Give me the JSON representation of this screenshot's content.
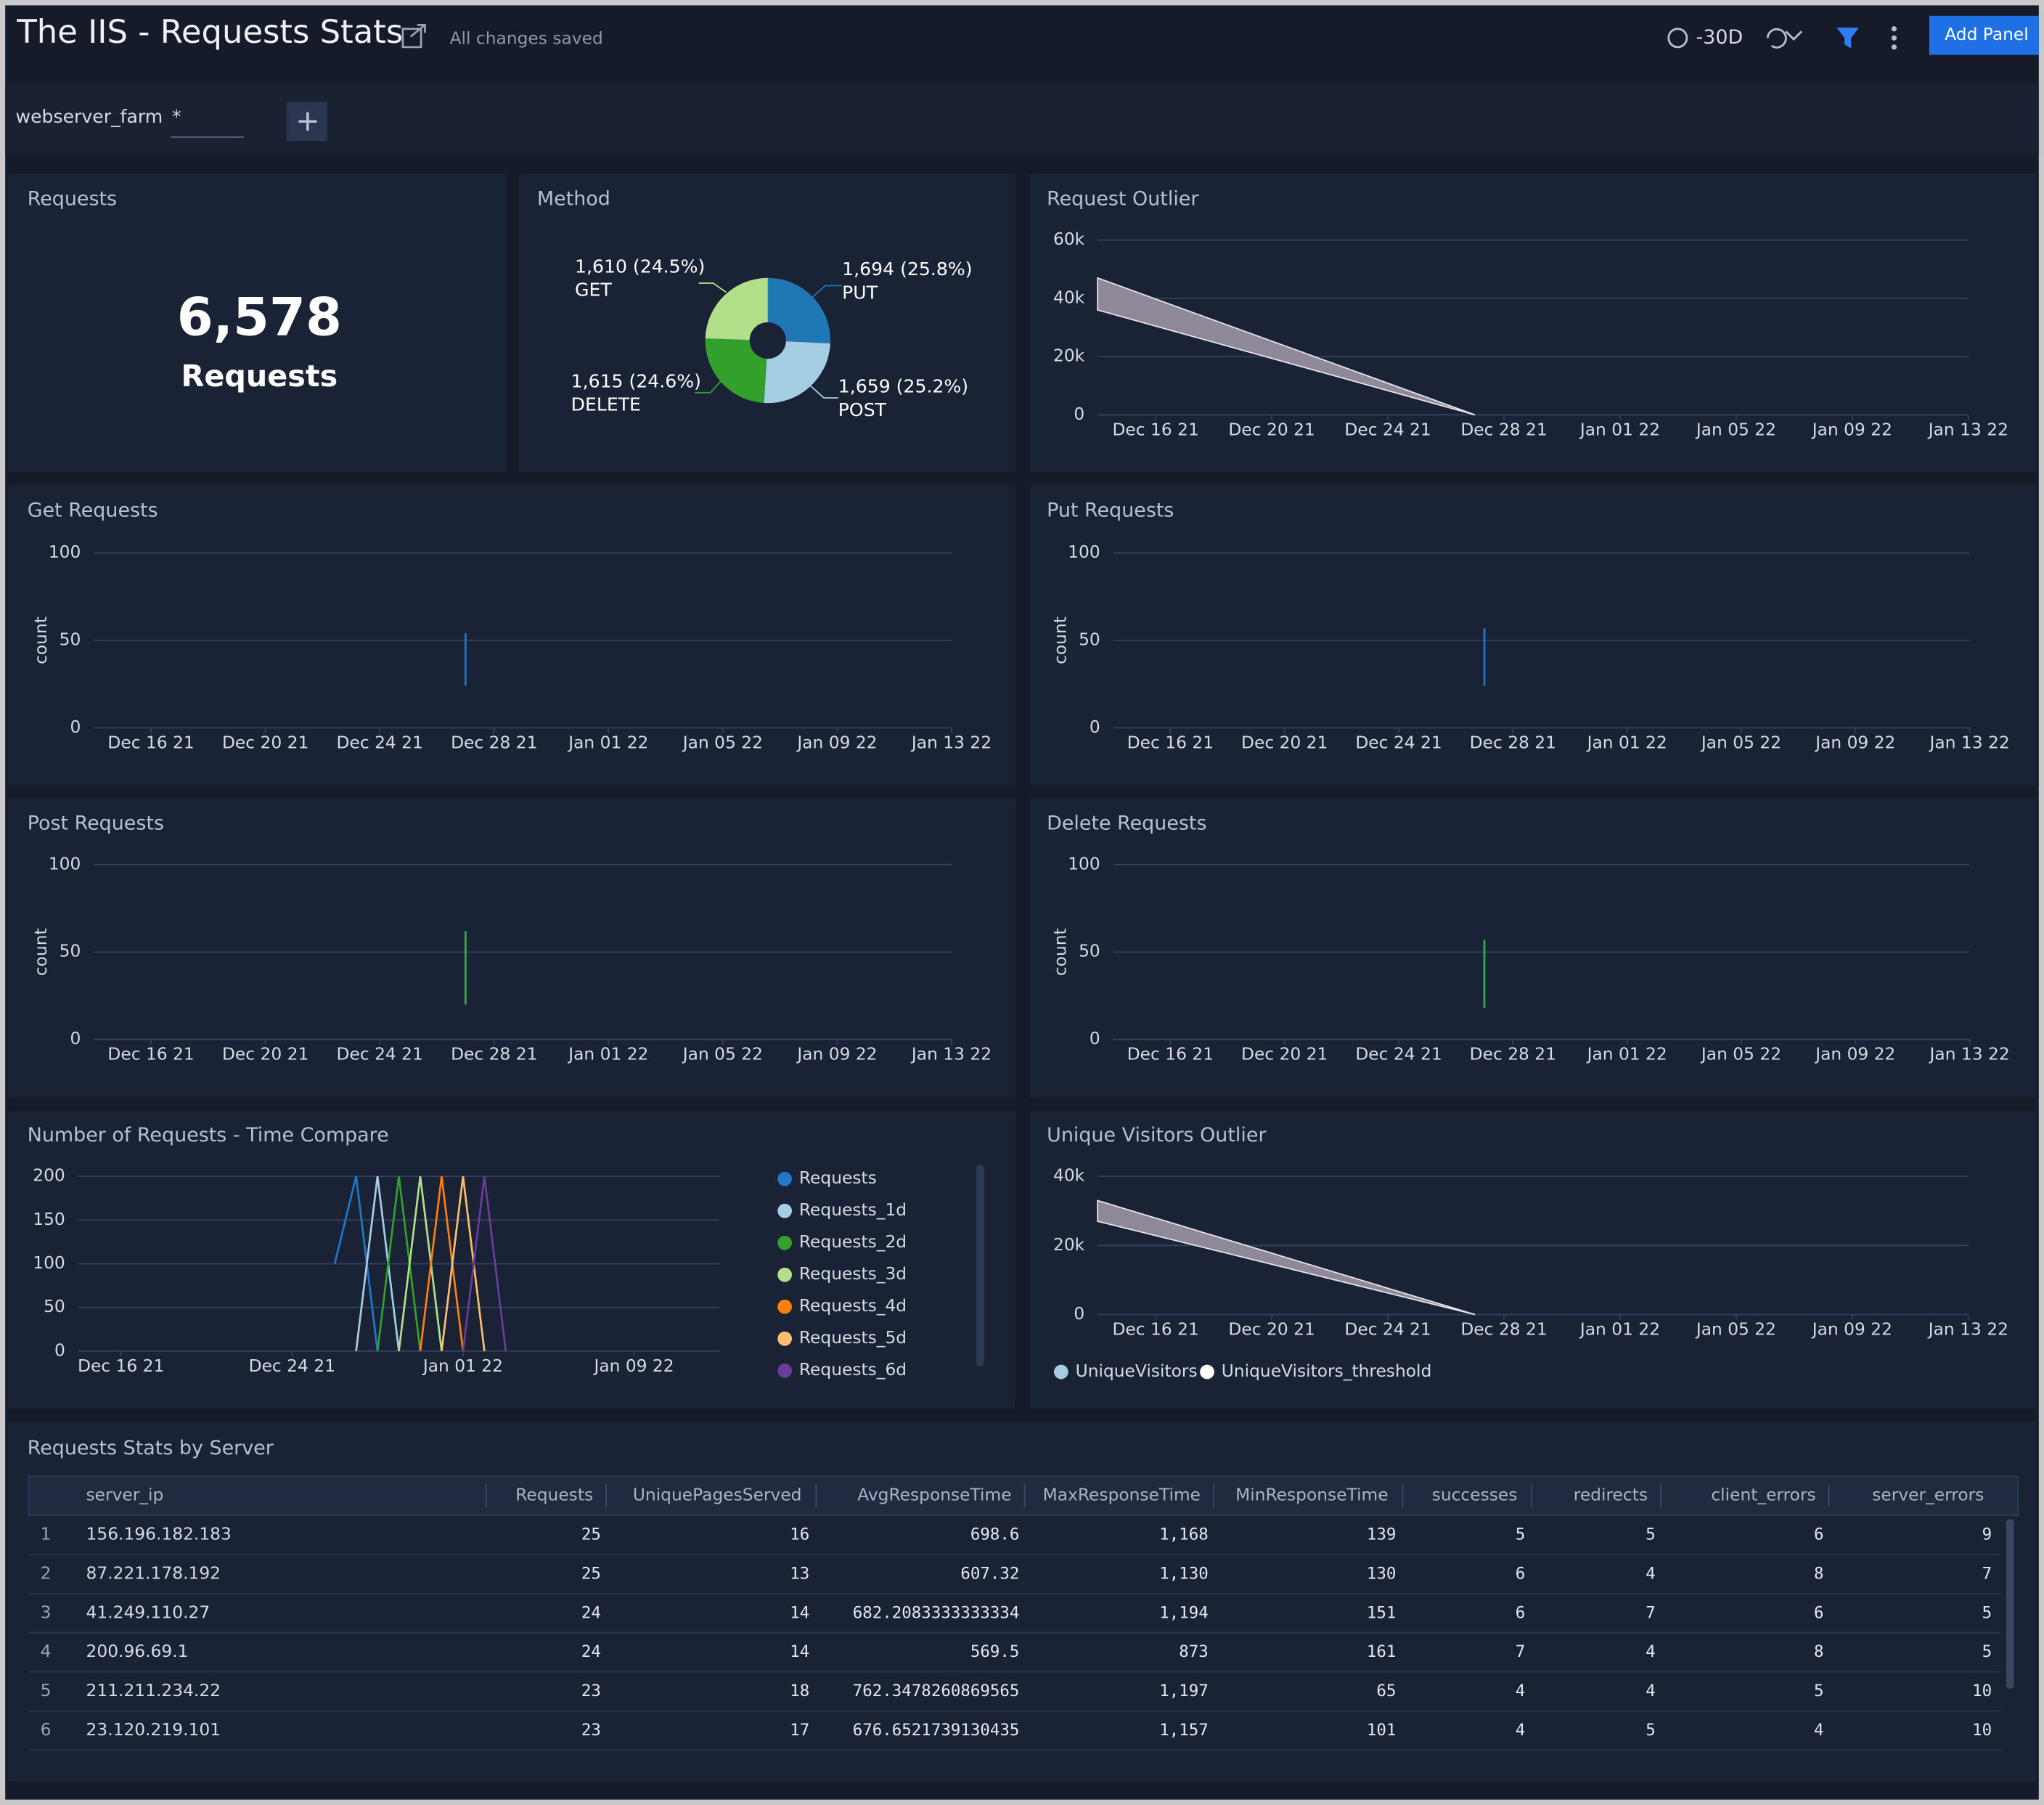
{
  "header": {
    "title": "The IIS - Requests Stats",
    "status": "All changes saved",
    "time_range": "-30D",
    "button": "Add Panel"
  },
  "filter": {
    "name": "webserver_farm",
    "value": "*"
  },
  "panels": {
    "requests": {
      "title": "Requests",
      "value": "6,578",
      "unit": "Requests"
    },
    "method": {
      "title": "Method",
      "type": "pie",
      "categories": [
        "PUT",
        "POST",
        "DELETE",
        "GET"
      ],
      "values": [
        1694,
        1659,
        1615,
        1610
      ],
      "value_labels": [
        "1,694 (25.8%)",
        "1,659 (25.2%)",
        "1,615 (24.6%)",
        "1,610 (24.5%)"
      ],
      "colors": [
        "#1f78b4",
        "#a6cee3",
        "#33a02c",
        "#b2df8a"
      ]
    },
    "request_outlier": {
      "title": "Request Outlier",
      "type": "band",
      "x": [
        "2021-12-14",
        "2021-12-27"
      ],
      "upper": [
        47000,
        0
      ],
      "lower": [
        36000,
        0
      ],
      "color": "#8f8898",
      "xlim": [
        "2021-12-14",
        "2022-01-13"
      ],
      "xticks": [
        {
          "value": "2021-12-16",
          "label": "Dec 16 21"
        },
        {
          "value": "2021-12-20",
          "label": "Dec 20 21"
        },
        {
          "value": "2021-12-24",
          "label": "Dec 24 21"
        },
        {
          "value": "2021-12-28",
          "label": "Dec 28 21"
        },
        {
          "value": "2022-01-01",
          "label": "Jan 01 22"
        },
        {
          "value": "2022-01-05",
          "label": "Jan 05 22"
        },
        {
          "value": "2022-01-09",
          "label": "Jan 09 22"
        },
        {
          "value": "2022-01-13",
          "label": "Jan 13 22"
        }
      ],
      "ylim": [
        0,
        60000
      ],
      "yticks": [
        0,
        {
          "value": 20000,
          "label": "20k"
        },
        {
          "value": 40000,
          "label": "40k"
        },
        {
          "value": 60000,
          "label": "60k"
        }
      ]
    },
    "get_requests": {
      "title": "Get Requests",
      "type": "line",
      "y_label": "count",
      "series": [
        {
          "color": "#1f78c8",
          "x": [
            "2021-12-27",
            "2021-12-27"
          ],
          "values": [
            54,
            24
          ]
        }
      ],
      "xlim": [
        "2021-12-14",
        "2022-01-13"
      ],
      "xticks": [
        {
          "value": "2021-12-16",
          "label": "Dec 16 21"
        },
        {
          "value": "2021-12-20",
          "label": "Dec 20 21"
        },
        {
          "value": "2021-12-24",
          "label": "Dec 24 21"
        },
        {
          "value": "2021-12-28",
          "label": "Dec 28 21"
        },
        {
          "value": "2022-01-01",
          "label": "Jan 01 22"
        },
        {
          "value": "2022-01-05",
          "label": "Jan 05 22"
        },
        {
          "value": "2022-01-09",
          "label": "Jan 09 22"
        },
        {
          "value": "2022-01-13",
          "label": "Jan 13 22"
        }
      ],
      "ylim": [
        0,
        100
      ],
      "yticks": [
        0,
        50,
        100
      ]
    },
    "put_requests": {
      "title": "Put Requests",
      "type": "line",
      "y_label": "count",
      "series": [
        {
          "color": "#1f78c8",
          "x": [
            "2021-12-27",
            "2021-12-27"
          ],
          "values": [
            57,
            24
          ]
        }
      ],
      "xlim": [
        "2021-12-14",
        "2022-01-13"
      ],
      "xticks": [
        {
          "value": "2021-12-16",
          "label": "Dec 16 21"
        },
        {
          "value": "2021-12-20",
          "label": "Dec 20 21"
        },
        {
          "value": "2021-12-24",
          "label": "Dec 24 21"
        },
        {
          "value": "2021-12-28",
          "label": "Dec 28 21"
        },
        {
          "value": "2022-01-01",
          "label": "Jan 01 22"
        },
        {
          "value": "2022-01-05",
          "label": "Jan 05 22"
        },
        {
          "value": "2022-01-09",
          "label": "Jan 09 22"
        },
        {
          "value": "2022-01-13",
          "label": "Jan 13 22"
        }
      ],
      "ylim": [
        0,
        100
      ],
      "yticks": [
        0,
        50,
        100
      ]
    },
    "post_requests": {
      "title": "Post Requests",
      "type": "line",
      "y_label": "count",
      "series": [
        {
          "color": "#33b04c",
          "x": [
            "2021-12-27",
            "2021-12-27"
          ],
          "values": [
            62,
            20
          ]
        }
      ],
      "xlim": [
        "2021-12-14",
        "2022-01-13"
      ],
      "xticks": [
        {
          "value": "2021-12-16",
          "label": "Dec 16 21"
        },
        {
          "value": "2021-12-20",
          "label": "Dec 20 21"
        },
        {
          "value": "2021-12-24",
          "label": "Dec 24 21"
        },
        {
          "value": "2021-12-28",
          "label": "Dec 28 21"
        },
        {
          "value": "2022-01-01",
          "label": "Jan 01 22"
        },
        {
          "value": "2022-01-05",
          "label": "Jan 05 22"
        },
        {
          "value": "2022-01-09",
          "label": "Jan 09 22"
        },
        {
          "value": "2022-01-13",
          "label": "Jan 13 22"
        }
      ],
      "ylim": [
        0,
        100
      ],
      "yticks": [
        0,
        50,
        100
      ]
    },
    "delete_requests": {
      "title": "Delete Requests",
      "type": "line",
      "y_label": "count",
      "series": [
        {
          "color": "#33b04c",
          "x": [
            "2021-12-27",
            "2021-12-27"
          ],
          "values": [
            57,
            18
          ]
        }
      ],
      "xlim": [
        "2021-12-14",
        "2022-01-13"
      ],
      "xticks": [
        {
          "value": "2021-12-16",
          "label": "Dec 16 21"
        },
        {
          "value": "2021-12-20",
          "label": "Dec 20 21"
        },
        {
          "value": "2021-12-24",
          "label": "Dec 24 21"
        },
        {
          "value": "2021-12-28",
          "label": "Dec 28 21"
        },
        {
          "value": "2022-01-01",
          "label": "Jan 01 22"
        },
        {
          "value": "2022-01-05",
          "label": "Jan 05 22"
        },
        {
          "value": "2022-01-09",
          "label": "Jan 09 22"
        },
        {
          "value": "2022-01-13",
          "label": "Jan 13 22"
        }
      ],
      "ylim": [
        0,
        100
      ],
      "yticks": [
        0,
        50,
        100
      ]
    },
    "time_compare": {
      "title": "Number of Requests - Time Compare",
      "type": "line",
      "series": [
        {
          "name": "Requests",
          "color": "#1f78c8",
          "x": [
            "2021-12-26",
            "2021-12-27",
            "2021-12-28"
          ],
          "values": [
            100,
            200,
            0
          ]
        },
        {
          "name": "Requests_1d",
          "color": "#a6cee3",
          "x": [
            "2021-12-27",
            "2021-12-28",
            "2021-12-29"
          ],
          "values": [
            0,
            200,
            0
          ]
        },
        {
          "name": "Requests_2d",
          "color": "#33a02c",
          "x": [
            "2021-12-28",
            "2021-12-29",
            "2021-12-30"
          ],
          "values": [
            0,
            200,
            0
          ]
        },
        {
          "name": "Requests_3d",
          "color": "#b2df8a",
          "x": [
            "2021-12-29",
            "2021-12-30",
            "2021-12-31"
          ],
          "values": [
            0,
            200,
            0
          ]
        },
        {
          "name": "Requests_4d",
          "color": "#ff7f0e",
          "x": [
            "2021-12-30",
            "2021-12-31",
            "2022-01-01"
          ],
          "values": [
            0,
            200,
            0
          ]
        },
        {
          "name": "Requests_5d",
          "color": "#fdbf6f",
          "x": [
            "2021-12-31",
            "2022-01-01",
            "2022-01-02"
          ],
          "values": [
            0,
            200,
            0
          ]
        },
        {
          "name": "Requests_6d",
          "color": "#6a3d9a",
          "x": [
            "2022-01-01",
            "2022-01-02",
            "2022-01-03"
          ],
          "values": [
            0,
            200,
            0
          ]
        }
      ],
      "xlim": [
        "2021-12-14",
        "2022-01-13"
      ],
      "xticks": [
        {
          "value": "2021-12-16",
          "label": "Dec 16 21"
        },
        {
          "value": "2021-12-24",
          "label": "Dec 24 21"
        },
        {
          "value": "2022-01-01",
          "label": "Jan 01 22"
        },
        {
          "value": "2022-01-09",
          "label": "Jan 09 22"
        }
      ],
      "ylim": [
        0,
        200
      ],
      "yticks": [
        0,
        50,
        100,
        150,
        200
      ]
    },
    "unique_visitors_outlier": {
      "title": "Unique Visitors Outlier",
      "type": "band",
      "x": [
        "2021-12-14",
        "2021-12-27"
      ],
      "upper": [
        33000,
        0
      ],
      "lower": [
        27000,
        0
      ],
      "color": "#8f8898",
      "legend": [
        {
          "name": "UniqueVisitors",
          "color": "#a6cee3"
        },
        {
          "name": "UniqueVisitors_threshold",
          "color": "#ffffff"
        }
      ],
      "xlim": [
        "2021-12-14",
        "2022-01-13"
      ],
      "xticks": [
        {
          "value": "2021-12-16",
          "label": "Dec 16 21"
        },
        {
          "value": "2021-12-20",
          "label": "Dec 20 21"
        },
        {
          "value": "2021-12-24",
          "label": "Dec 24 21"
        },
        {
          "value": "2021-12-28",
          "label": "Dec 28 21"
        },
        {
          "value": "2022-01-01",
          "label": "Jan 01 22"
        },
        {
          "value": "2022-01-05",
          "label": "Jan 05 22"
        },
        {
          "value": "2022-01-09",
          "label": "Jan 09 22"
        },
        {
          "value": "2022-01-13",
          "label": "Jan 13 22"
        }
      ],
      "ylim": [
        0,
        40000
      ],
      "yticks": [
        0,
        {
          "value": 20000,
          "label": "20k"
        },
        {
          "value": 40000,
          "label": "40k"
        }
      ]
    }
  },
  "table": {
    "title": "Requests Stats by Server",
    "columns": [
      "server_ip",
      "Requests",
      "UniquePagesServed",
      "AvgResponseTime",
      "MaxResponseTime",
      "MinResponseTime",
      "successes",
      "redirects",
      "client_errors",
      "server_errors"
    ],
    "rows": [
      [
        "1",
        "156.196.182.183",
        "25",
        "16",
        "698.6",
        "1,168",
        "139",
        "5",
        "5",
        "6",
        "9"
      ],
      [
        "2",
        "87.221.178.192",
        "25",
        "13",
        "607.32",
        "1,130",
        "130",
        "6",
        "4",
        "8",
        "7"
      ],
      [
        "3",
        "41.249.110.27",
        "24",
        "14",
        "682.2083333333334",
        "1,194",
        "151",
        "6",
        "7",
        "6",
        "5"
      ],
      [
        "4",
        "200.96.69.1",
        "24",
        "14",
        "569.5",
        "873",
        "161",
        "7",
        "4",
        "8",
        "5"
      ],
      [
        "5",
        "211.211.234.22",
        "23",
        "18",
        "762.3478260869565",
        "1,197",
        "65",
        "4",
        "4",
        "5",
        "10"
      ],
      [
        "6",
        "23.120.219.101",
        "23",
        "17",
        "676.6521739130435",
        "1,157",
        "101",
        "4",
        "5",
        "4",
        "10"
      ]
    ]
  }
}
